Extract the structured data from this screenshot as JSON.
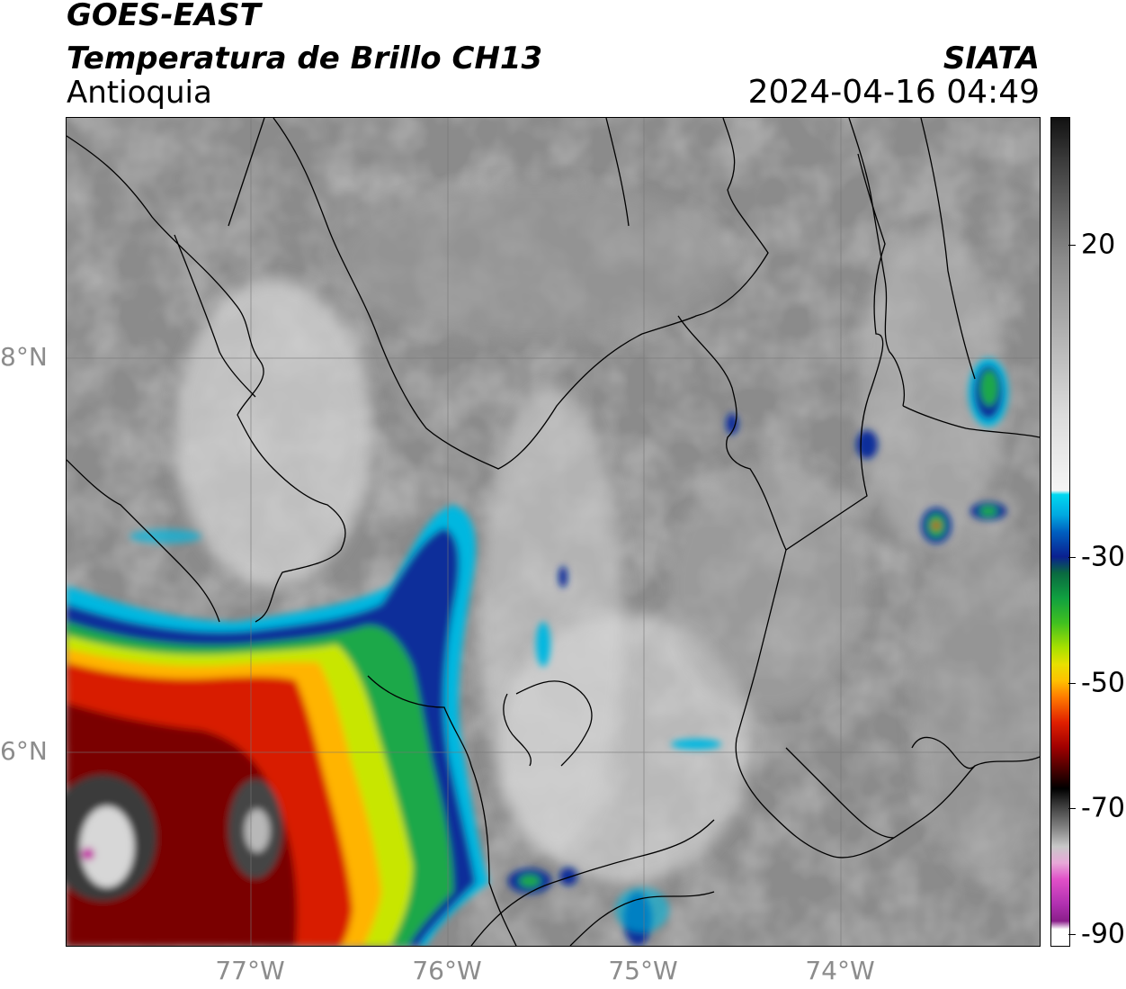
{
  "header": {
    "title_line1": "GOES-EAST",
    "title_line2": "Temperatura de Brillo CH13",
    "region": "Antioquia",
    "source": "SIATA",
    "datetime": "2024-04-16 04:49"
  },
  "axes": {
    "lat_ticks": [
      "8°N",
      "6°N"
    ],
    "lon_ticks": [
      "77°W",
      "76°W",
      "75°W",
      "74°W"
    ]
  },
  "colorbar": {
    "ticks": [
      "20",
      "-30",
      "-50",
      "-70",
      "-90"
    ]
  },
  "colors": {
    "cold_cloud_core": "#7a0000",
    "warm_background": "#8a8a8a"
  }
}
